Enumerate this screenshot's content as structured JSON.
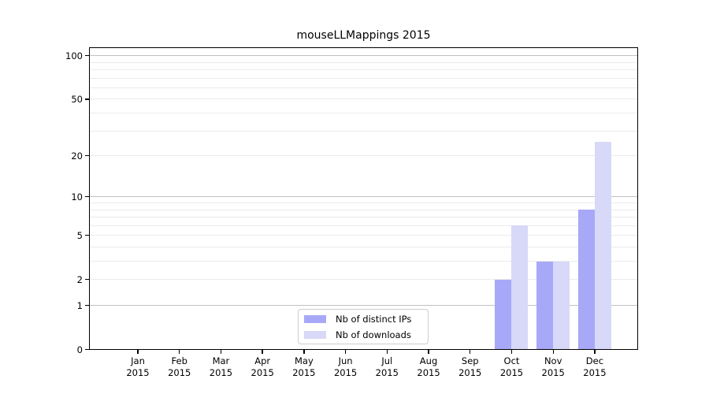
{
  "title": "mouseLLMappings 2015",
  "chart_data": {
    "type": "bar",
    "title": "mouseLLMappings 2015",
    "year": "2015",
    "categories": [
      "Jan",
      "Feb",
      "Mar",
      "Apr",
      "May",
      "Jun",
      "Jul",
      "Aug",
      "Sep",
      "Oct",
      "Nov",
      "Dec"
    ],
    "series": [
      {
        "name": "Nb of distinct IPs",
        "color": "#a8a8f8",
        "values": [
          0,
          0,
          0,
          0,
          0,
          0,
          0,
          0,
          0,
          2,
          3,
          8
        ]
      },
      {
        "name": "Nb of downloads",
        "color": "#d8d8f8",
        "values": [
          0,
          0,
          0,
          0,
          0,
          0,
          0,
          0,
          0,
          6,
          3,
          25
        ]
      }
    ],
    "y_axis": {
      "scale": "log1p",
      "tick_values": [
        0,
        1,
        2,
        5,
        10,
        20,
        50,
        100
      ],
      "tick_labels": [
        "0",
        "1",
        "2",
        "5",
        "10",
        "20",
        "50",
        "100"
      ],
      "major_gridlines": [
        1,
        10,
        100
      ],
      "minor_gridlines": [
        2,
        3,
        4,
        5,
        6,
        7,
        8,
        9,
        20,
        30,
        40,
        50,
        60,
        70,
        80,
        90
      ],
      "ylim": [
        0,
        114
      ]
    },
    "xlabel": "",
    "ylabel": "",
    "grid": true,
    "legend_position": "bottom-center"
  }
}
